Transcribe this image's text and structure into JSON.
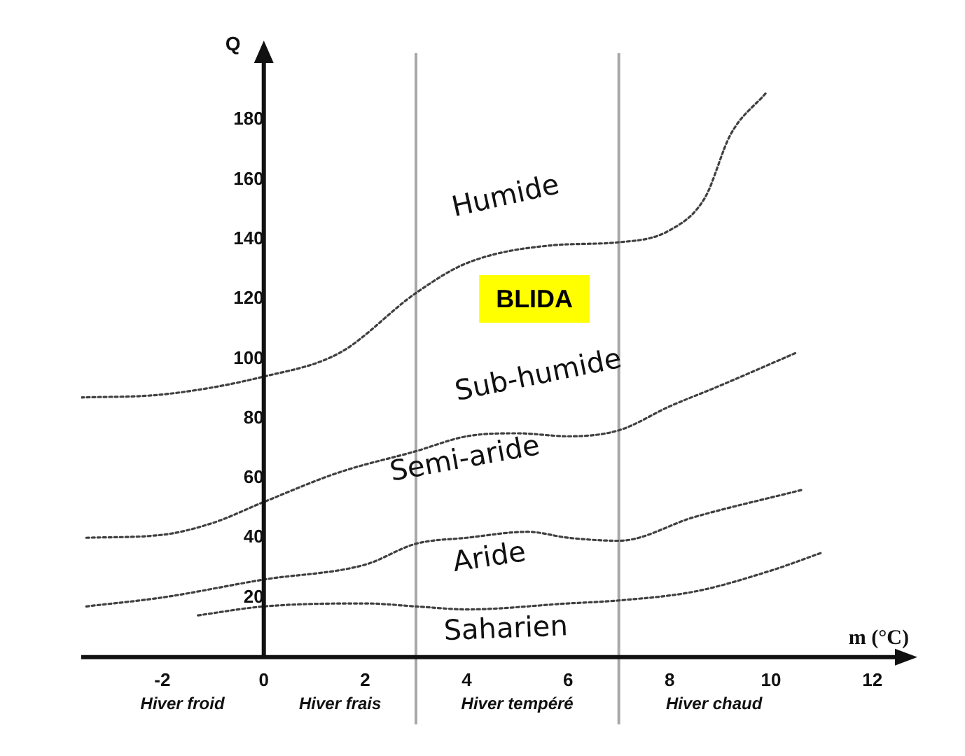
{
  "chart_data": {
    "type": "line",
    "xlabel": "m (°C)",
    "ylabel": "Q",
    "xlim": [
      -3.6,
      12.5
    ],
    "ylim": [
      0,
      200
    ],
    "xticks": [
      -2,
      0,
      2,
      4,
      6,
      8,
      10,
      12
    ],
    "yticks": [
      20,
      40,
      60,
      80,
      100,
      120,
      140,
      160,
      180
    ],
    "grid": false,
    "legend": false,
    "marker": "none",
    "line_style": "dotted",
    "series": [
      {
        "color": "#404040",
        "x": [
          -3.6,
          -2,
          0,
          1.5,
          3,
          4,
          5.7,
          7,
          8,
          8.7,
          9.2,
          9.9
        ],
        "values": [
          87,
          88,
          94,
          102,
          122,
          132,
          138,
          139,
          143,
          154,
          175,
          189
        ]
      },
      {
        "color": "#404040",
        "x": [
          -3.5,
          -2,
          -1,
          0,
          1.5,
          3,
          4,
          5,
          6,
          7,
          8,
          9,
          10.5
        ],
        "values": [
          40,
          41,
          45,
          52,
          62,
          69,
          74,
          75,
          74,
          76,
          84,
          91,
          102
        ]
      },
      {
        "color": "#404040",
        "x": [
          -3.5,
          -2,
          0,
          2,
          3,
          4,
          5.2,
          6,
          7,
          8.5,
          10.6
        ],
        "values": [
          17,
          20,
          26,
          31,
          38,
          40,
          42,
          40,
          39,
          47,
          56
        ]
      },
      {
        "color": "#404040",
        "x": [
          -1.3,
          0,
          2,
          3,
          4,
          6,
          7,
          8.5,
          10,
          11
        ],
        "values": [
          14,
          17,
          18,
          17,
          16,
          18,
          19,
          22,
          29,
          35
        ]
      }
    ],
    "ref_lines": [
      {
        "axis": "x",
        "value": 3,
        "color": "#a8a8a8"
      },
      {
        "axis": "x",
        "value": 7,
        "color": "#a8a8a8"
      }
    ],
    "annotations": [
      "Humide",
      "BLIDA",
      "Sub-humide",
      "Semi-aride",
      "Aride",
      "Saharien",
      "Hiver froid",
      "Hiver frais",
      "Hiver tempéré",
      "Hiver chaud"
    ]
  }
}
